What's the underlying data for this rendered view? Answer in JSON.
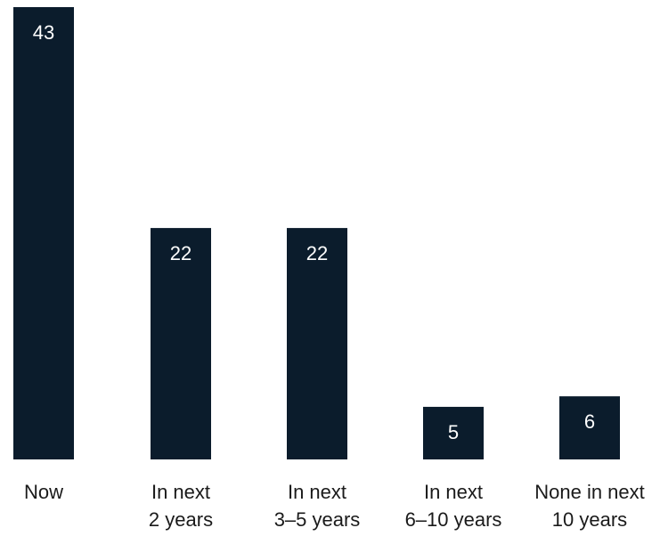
{
  "chart_data": {
    "type": "bar",
    "categories": [
      [
        "Now"
      ],
      [
        "In next",
        "2 years"
      ],
      [
        "In next",
        "3–5 years"
      ],
      [
        "In next",
        "6–10 years"
      ],
      [
        "None in next",
        "10 years"
      ]
    ],
    "values": [
      43,
      22,
      22,
      5,
      6
    ],
    "value_labels": [
      "43",
      "22",
      "22",
      "5",
      "6"
    ],
    "title": "",
    "xlabel": "",
    "ylabel": "",
    "ylim": [
      0,
      43
    ],
    "grid": false,
    "legend": "none",
    "colors": {
      "bar": "#0b1c2c",
      "value_label": "#ffffff",
      "category_label": "#1a1a1a",
      "background": "#ffffff"
    }
  }
}
